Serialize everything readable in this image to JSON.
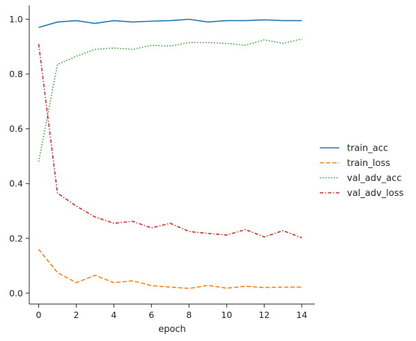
{
  "chart_data": {
    "type": "line",
    "xlabel": "epoch",
    "ylabel": "",
    "xlim": [
      -0.5,
      14.7
    ],
    "ylim": [
      -0.04,
      1.05
    ],
    "xticks": [
      0,
      2,
      4,
      6,
      8,
      10,
      12,
      14
    ],
    "yticks": [
      0.0,
      0.2,
      0.4,
      0.6,
      0.8,
      1.0
    ],
    "xtick_labels": [
      "0",
      "2",
      "4",
      "6",
      "8",
      "10",
      "12",
      "14"
    ],
    "ytick_labels": [
      "0.0",
      "0.2",
      "0.4",
      "0.6",
      "0.8",
      "1.0"
    ],
    "grid": false,
    "legend_position": "right",
    "x": [
      0,
      1,
      2,
      3,
      4,
      5,
      6,
      7,
      8,
      9,
      10,
      11,
      12,
      13,
      14
    ],
    "series": [
      {
        "name": "train_acc",
        "color": "#1f77b4",
        "dash": "solid",
        "values": [
          0.97,
          0.99,
          0.995,
          0.985,
          0.995,
          0.99,
          0.993,
          0.995,
          1.0,
          0.99,
          0.995,
          0.995,
          0.998,
          0.995,
          0.995
        ]
      },
      {
        "name": "train_loss",
        "color": "#ff7f0e",
        "dash": "dashed",
        "values": [
          0.16,
          0.075,
          0.038,
          0.065,
          0.038,
          0.045,
          0.027,
          0.022,
          0.017,
          0.028,
          0.018,
          0.025,
          0.02,
          0.022,
          0.022
        ]
      },
      {
        "name": "val_adv_acc",
        "color": "#2ca02c",
        "dash": "dotted",
        "values": [
          0.48,
          0.835,
          0.865,
          0.89,
          0.895,
          0.89,
          0.905,
          0.902,
          0.915,
          0.915,
          0.912,
          0.905,
          0.925,
          0.912,
          0.928
        ]
      },
      {
        "name": "val_adv_loss",
        "color": "#d62728",
        "dash": "dashdot",
        "values": [
          0.91,
          0.365,
          0.318,
          0.278,
          0.255,
          0.262,
          0.238,
          0.255,
          0.225,
          0.218,
          0.212,
          0.232,
          0.205,
          0.228,
          0.202
        ]
      }
    ]
  }
}
